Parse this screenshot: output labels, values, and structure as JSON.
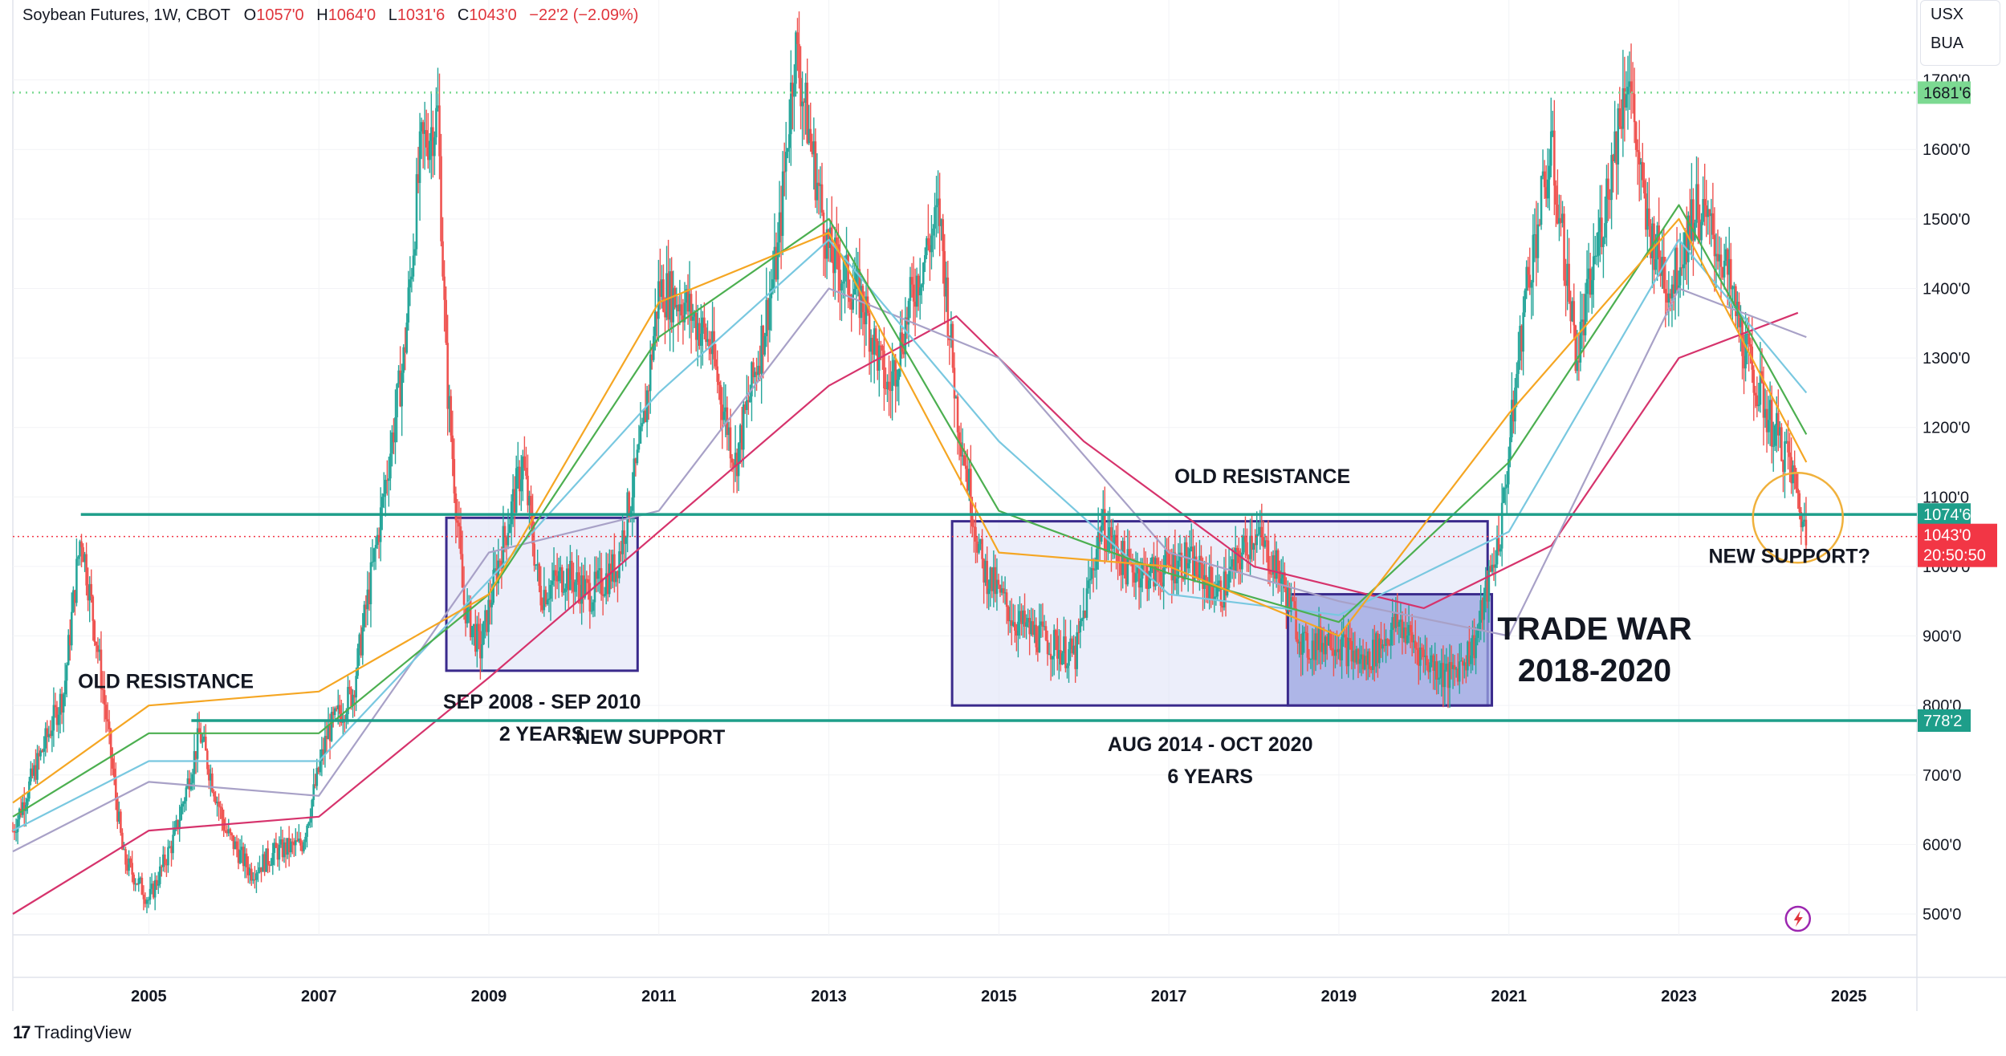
{
  "header": {
    "title": "Soybean Futures, 1W, CBOT",
    "o_label": "O",
    "o_value": "1057'0",
    "h_label": "H",
    "h_value": "1064'0",
    "l_label": "L",
    "l_value": "1031'6",
    "c_label": "C",
    "c_value": "1043'0",
    "change": "−22'2 (−2.09%)"
  },
  "symbols": [
    "USX",
    "BUA"
  ],
  "brand": "TradingView",
  "colors": {
    "up": "#26a69a",
    "down": "#ef5350",
    "support_line": "#1e9e8a",
    "box_border": "#3a2a8c",
    "box_fill": "#dfe3f7",
    "box_fill_dark": "#9aa3e0",
    "ma_pink": "#d6336c",
    "circle": "#f0b13c",
    "price_tag": "#f23645",
    "level_tag": "#1e9e8a",
    "top_level_tag": "#7cd992"
  },
  "chart_data": {
    "type": "candlestick",
    "title": "Soybean Futures, 1W, CBOT",
    "x_tick_labels": [
      "2005",
      "2007",
      "2009",
      "2011",
      "2013",
      "2015",
      "2017",
      "2019",
      "2021",
      "2023",
      "2025"
    ],
    "y_tick_labels": [
      "500'0",
      "600'0",
      "700'0",
      "800'0",
      "900'0",
      "1000'0",
      "1100'0",
      "1200'0",
      "1300'0",
      "1400'0",
      "1500'0",
      "1600'0",
      "1700'0"
    ],
    "ylim": [
      470,
      1815
    ],
    "xlim": [
      2003.4,
      2025.8
    ],
    "price_series": {
      "name": "Soybean Futures",
      "x": [
        2003.4,
        2003.7,
        2004.0,
        2004.2,
        2004.4,
        2004.7,
        2005.0,
        2005.3,
        2005.6,
        2005.9,
        2006.2,
        2006.5,
        2006.8,
        2007.1,
        2007.4,
        2007.7,
        2008.0,
        2008.2,
        2008.4,
        2008.5,
        2008.7,
        2008.9,
        2009.1,
        2009.4,
        2009.6,
        2009.9,
        2010.2,
        2010.5,
        2010.8,
        2011.0,
        2011.3,
        2011.6,
        2011.9,
        2012.2,
        2012.4,
        2012.6,
        2012.8,
        2013.0,
        2013.4,
        2013.7,
        2014.0,
        2014.3,
        2014.5,
        2014.8,
        2015.2,
        2015.6,
        2015.9,
        2016.2,
        2016.5,
        2016.8,
        2017.2,
        2017.6,
        2018.0,
        2018.3,
        2018.6,
        2018.9,
        2019.3,
        2019.7,
        2020.0,
        2020.3,
        2020.6,
        2020.9,
        2021.2,
        2021.5,
        2021.8,
        2022.1,
        2022.4,
        2022.6,
        2022.9,
        2023.2,
        2023.5,
        2023.8,
        2024.1,
        2024.3,
        2024.5
      ],
      "y": [
        620,
        720,
        820,
        1050,
        880,
        580,
        520,
        610,
        760,
        620,
        560,
        590,
        600,
        760,
        820,
        1050,
        1300,
        1600,
        1650,
        1280,
        950,
        880,
        1000,
        1150,
        960,
        990,
        960,
        1000,
        1180,
        1400,
        1380,
        1320,
        1150,
        1320,
        1450,
        1750,
        1600,
        1450,
        1380,
        1250,
        1400,
        1510,
        1230,
        1000,
        920,
        890,
        870,
        1060,
        1000,
        990,
        1010,
        960,
        1050,
        990,
        880,
        900,
        860,
        920,
        870,
        840,
        890,
        1050,
        1400,
        1600,
        1300,
        1500,
        1720,
        1500,
        1400,
        1520,
        1450,
        1300,
        1200,
        1150,
        1043
      ]
    },
    "moving_averages": [
      {
        "color": "#d6336c",
        "x": [
          2003.4,
          2005.0,
          2007.0,
          2009.0,
          2011.0,
          2013.0,
          2014.5,
          2016.0,
          2018.0,
          2020.0,
          2021.5,
          2023.0,
          2024.4
        ],
        "y": [
          500,
          620,
          640,
          840,
          1050,
          1260,
          1360,
          1180,
          1000,
          940,
          1030,
          1300,
          1365
        ]
      },
      {
        "color": "#a8a1c7",
        "x": [
          2003.4,
          2005.0,
          2007.0,
          2009.0,
          2011.0,
          2013.0,
          2015.0,
          2017.0,
          2019.0,
          2021.0,
          2023.0,
          2024.5
        ],
        "y": [
          590,
          690,
          670,
          1020,
          1080,
          1400,
          1300,
          1020,
          950,
          900,
          1400,
          1330
        ]
      },
      {
        "color": "#79c8e0",
        "x": [
          2003.4,
          2005.0,
          2007.0,
          2009.0,
          2011.0,
          2013.0,
          2015.0,
          2017.0,
          2019.0,
          2021.0,
          2023.0,
          2024.5
        ],
        "y": [
          620,
          720,
          720,
          980,
          1250,
          1470,
          1180,
          960,
          930,
          1050,
          1470,
          1250
        ]
      },
      {
        "color": "#4caf50",
        "x": [
          2003.4,
          2005.0,
          2007.0,
          2009.0,
          2011.0,
          2013.0,
          2015.0,
          2017.0,
          2019.0,
          2021.0,
          2023.0,
          2024.5
        ],
        "y": [
          640,
          760,
          760,
          960,
          1330,
          1500,
          1080,
          990,
          920,
          1150,
          1520,
          1190
        ]
      },
      {
        "color": "#f5a623",
        "x": [
          2003.4,
          2005.0,
          2007.0,
          2009.0,
          2011.0,
          2013.0,
          2015.0,
          2017.0,
          2019.0,
          2021.0,
          2023.0,
          2024.5
        ],
        "y": [
          660,
          800,
          820,
          960,
          1380,
          1480,
          1020,
          1000,
          900,
          1220,
          1500,
          1150
        ]
      }
    ],
    "levels": [
      {
        "value": 1681.75,
        "label": "1681'6",
        "style": "dotted-green"
      },
      {
        "value": 1074.75,
        "label": "1074'6",
        "style": "solid-teal",
        "x_start": 2004.2
      },
      {
        "value": 1043,
        "label": "1043'0",
        "style": "dotted-red"
      },
      {
        "value": 778.25,
        "label": "778'2",
        "style": "solid-teal",
        "x_start": 2005.5
      }
    ],
    "last_price": {
      "value": 1043,
      "label": "1043'0",
      "countdown": "20:50:50"
    },
    "boxes": [
      {
        "x0": 2008.5,
        "x1": 2010.75,
        "y0": 850,
        "y1": 1070,
        "label": "SEP 2008 - SEP 2010",
        "sublabel": "2 YEARS"
      },
      {
        "x0": 2014.45,
        "x1": 2020.75,
        "y0": 800,
        "y1": 1065,
        "label": "AUG 2014 - OCT 2020",
        "sublabel": "6 YEARS"
      },
      {
        "x0": 2018.4,
        "x1": 2020.8,
        "y0": 800,
        "y1": 960,
        "label": "TRADE WAR",
        "sublabel": "2018-2020"
      }
    ],
    "annotations": [
      {
        "text": "OLD RESISTANCE",
        "x": 2005.2,
        "y": 825
      },
      {
        "text": "NEW SUPPORT",
        "x": 2010.9,
        "y": 745
      },
      {
        "text": "OLD RESISTANCE",
        "x": 2018.1,
        "y": 1120
      },
      {
        "text": "NEW SUPPORT?",
        "x": 2024.3,
        "y": 1005
      }
    ],
    "highlight_circle": {
      "x": 2024.4,
      "y": 1070
    }
  }
}
